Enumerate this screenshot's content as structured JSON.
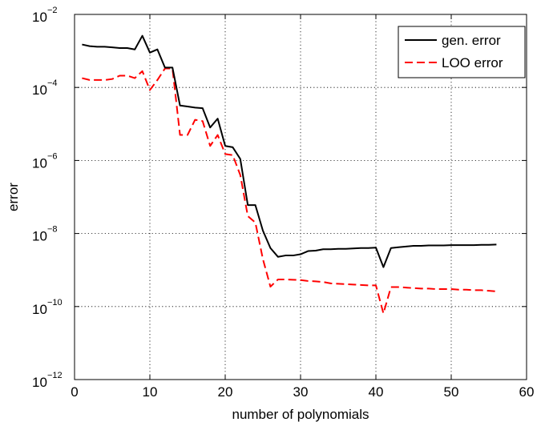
{
  "chart_data": {
    "type": "line",
    "xlabel": "number of polynomials",
    "ylabel": "error",
    "xlim": [
      0,
      60
    ],
    "ylim": [
      1e-12,
      0.01
    ],
    "yscale": "log",
    "grid": true,
    "legend_position": "top-right",
    "x_ticks": [
      {
        "value": 0,
        "label": "0"
      },
      {
        "value": 10,
        "label": "10"
      },
      {
        "value": 20,
        "label": "20"
      },
      {
        "value": 30,
        "label": "30"
      },
      {
        "value": 40,
        "label": "40"
      },
      {
        "value": 50,
        "label": "50"
      },
      {
        "value": 60,
        "label": "60"
      }
    ],
    "y_ticks": [
      {
        "value": 1e-12,
        "base": "10",
        "exp": "−12"
      },
      {
        "value": 1e-10,
        "base": "10",
        "exp": "−10"
      },
      {
        "value": 1e-08,
        "base": "10",
        "exp": "−8"
      },
      {
        "value": 1e-06,
        "base": "10",
        "exp": "−6"
      },
      {
        "value": 0.0001,
        "base": "10",
        "exp": "−4"
      },
      {
        "value": 0.01,
        "base": "10",
        "exp": "−2"
      }
    ],
    "series": [
      {
        "name": "gen. error",
        "color": "#000000",
        "dash": "solid",
        "x": [
          1,
          2,
          3,
          4,
          5,
          6,
          7,
          8,
          9,
          10,
          11,
          12,
          13,
          14,
          15,
          16,
          17,
          18,
          19,
          20,
          21,
          22,
          23,
          24,
          25,
          26,
          27,
          28,
          29,
          30,
          31,
          32,
          33,
          34,
          35,
          36,
          37,
          38,
          39,
          40,
          41,
          42,
          43,
          44,
          45,
          46,
          47,
          48,
          49,
          50,
          51,
          52,
          53,
          54,
          55,
          56
        ],
        "y": [
          0.0015,
          0.00135,
          0.0013,
          0.0013,
          0.00125,
          0.0012,
          0.0012,
          0.0011,
          0.0026,
          0.0009,
          0.0011,
          0.00035,
          0.00035,
          3.2e-05,
          3e-05,
          2.8e-05,
          2.7e-05,
          8e-06,
          1.4e-05,
          2.5e-06,
          2.3e-06,
          1.1e-06,
          6e-08,
          6e-08,
          1.2e-08,
          4e-09,
          2.3e-09,
          2.5e-09,
          2.5e-09,
          2.7e-09,
          3.3e-09,
          3.4e-09,
          3.7e-09,
          3.7e-09,
          3.8e-09,
          3.8e-09,
          3.9e-09,
          4e-09,
          4e-09,
          4.1e-09,
          1.2e-09,
          4e-09,
          4.2e-09,
          4.4e-09,
          4.6e-09,
          4.6e-09,
          4.7e-09,
          4.7e-09,
          4.7e-09,
          4.8e-09,
          4.8e-09,
          4.8e-09,
          4.8e-09,
          4.9e-09,
          4.9e-09,
          5e-09
        ]
      },
      {
        "name": "LOO error",
        "color": "#ff0000",
        "dash": "dashed",
        "x": [
          1,
          2,
          3,
          4,
          5,
          6,
          7,
          8,
          9,
          10,
          11,
          12,
          13,
          14,
          15,
          16,
          17,
          18,
          19,
          20,
          21,
          22,
          23,
          24,
          25,
          26,
          27,
          28,
          29,
          30,
          31,
          32,
          33,
          34,
          35,
          36,
          37,
          38,
          39,
          40,
          41,
          42,
          43,
          44,
          45,
          46,
          47,
          48,
          49,
          50,
          51,
          52,
          53,
          54,
          55,
          56
        ],
        "y": [
          0.00018,
          0.00016,
          0.00016,
          0.00016,
          0.00017,
          0.00021,
          0.00021,
          0.00018,
          0.00028,
          8.5e-05,
          0.00016,
          0.00033,
          0.00033,
          5e-06,
          5e-06,
          1.3e-05,
          1.2e-05,
          2.5e-06,
          5e-06,
          1.5e-06,
          1.4e-06,
          4e-07,
          3e-08,
          2e-08,
          2e-09,
          3.5e-10,
          5.5e-10,
          5.5e-10,
          5.4e-10,
          5.3e-10,
          5e-10,
          4.9e-10,
          4.7e-10,
          4.3e-10,
          4.2e-10,
          4.1e-10,
          4e-10,
          3.9e-10,
          3.8e-10,
          3.8e-10,
          6.5e-11,
          3.4e-10,
          3.4e-10,
          3.3e-10,
          3.2e-10,
          3.1e-10,
          3.1e-10,
          3e-10,
          3e-10,
          3e-10,
          2.9e-10,
          2.9e-10,
          2.8e-10,
          2.8e-10,
          2.7e-10,
          2.6e-10
        ]
      }
    ]
  }
}
